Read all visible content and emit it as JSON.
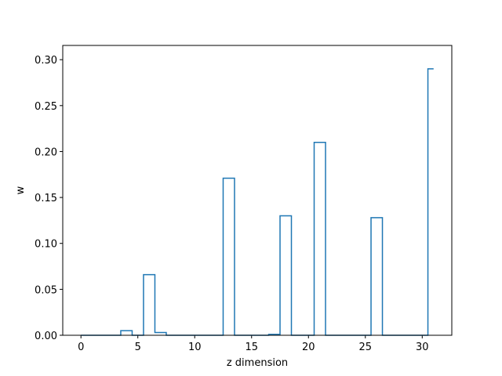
{
  "chart_data": {
    "type": "line",
    "style": "step",
    "title": "",
    "xlabel": "z dimension",
    "ylabel": "w",
    "xlim": [
      -1.6,
      32.6
    ],
    "ylim": [
      0,
      0.3155
    ],
    "xticks": [
      0,
      5,
      10,
      15,
      20,
      25,
      30
    ],
    "yticks": [
      0.0,
      0.05,
      0.1,
      0.15,
      0.2,
      0.25,
      0.3
    ],
    "xtick_labels": [
      "0",
      "5",
      "10",
      "15",
      "20",
      "25",
      "30"
    ],
    "ytick_labels": [
      "0.00",
      "0.05",
      "0.10",
      "0.15",
      "0.20",
      "0.25",
      "0.30"
    ],
    "grid": false,
    "color": "#1f77b4",
    "series": [
      {
        "x": [
          0,
          1,
          2,
          3,
          4,
          5,
          6,
          7,
          8,
          9,
          10,
          11,
          12,
          13,
          14,
          15,
          16,
          17,
          18,
          19,
          20,
          21,
          22,
          23,
          24,
          25,
          26,
          27,
          28,
          29,
          30,
          31
        ],
        "values": [
          0,
          0,
          0,
          0,
          0.005,
          0,
          0.066,
          0.003,
          0,
          0,
          0,
          0,
          0,
          0.171,
          0,
          0,
          0,
          0.001,
          0.13,
          0,
          0,
          0.21,
          0,
          0,
          0,
          0,
          0.128,
          0,
          0,
          0,
          0,
          0.29
        ]
      }
    ]
  }
}
